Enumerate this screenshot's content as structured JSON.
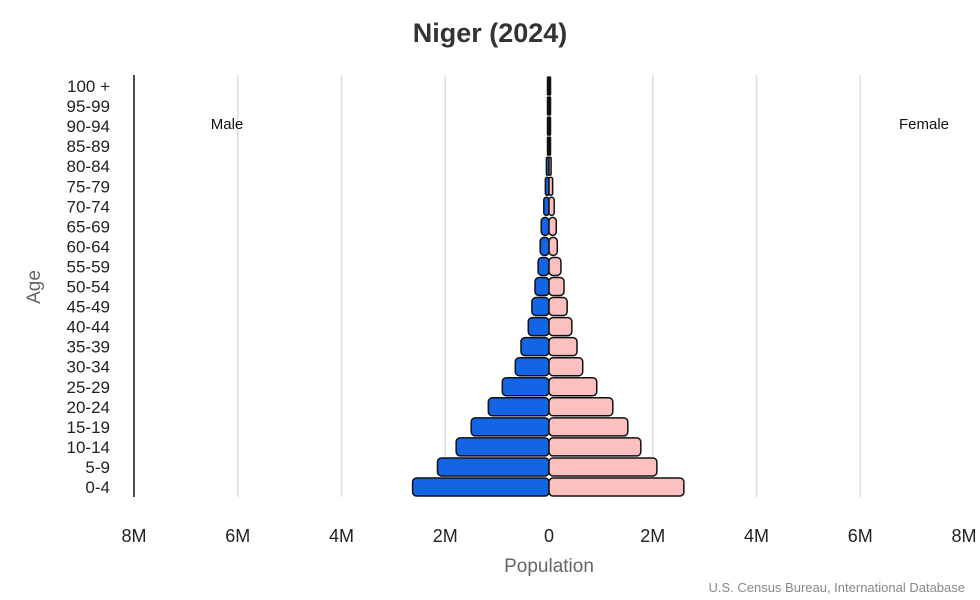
{
  "chart_data": {
    "type": "bar",
    "orientation": "horizontal-pyramid",
    "title": "Niger (2024)",
    "xlabel": "Population",
    "ylabel": "Age",
    "credit": "U.S. Census Bureau, International Database",
    "xlim": [
      -8000000,
      8000000
    ],
    "x_ticks": [
      -8000000,
      -6000000,
      -4000000,
      -2000000,
      0,
      2000000,
      4000000,
      6000000,
      8000000
    ],
    "x_tick_labels": [
      "8M",
      "6M",
      "4M",
      "2M",
      "0",
      "2M",
      "4M",
      "6M",
      "8M"
    ],
    "grid": true,
    "categories": [
      "0-4",
      "5-9",
      "10-14",
      "15-19",
      "20-24",
      "25-29",
      "30-34",
      "35-39",
      "40-44",
      "45-49",
      "50-54",
      "55-59",
      "60-64",
      "65-69",
      "70-74",
      "75-79",
      "80-84",
      "85-89",
      "90-94",
      "95-99",
      "100 +"
    ],
    "series": [
      {
        "name": "Male",
        "color": "#1464e6",
        "label_position": "top-left",
        "values": [
          2630000,
          2150000,
          1790000,
          1500000,
          1170000,
          900000,
          650000,
          540000,
          400000,
          330000,
          270000,
          210000,
          170000,
          150000,
          100000,
          70000,
          50000,
          20000,
          8000,
          3000,
          1000
        ]
      },
      {
        "name": "Female",
        "color": "#fcc0c0",
        "label_position": "top-right",
        "values": [
          2600000,
          2080000,
          1770000,
          1520000,
          1230000,
          920000,
          650000,
          540000,
          440000,
          350000,
          290000,
          230000,
          160000,
          140000,
          100000,
          70000,
          40000,
          20000,
          8000,
          3000,
          1000
        ]
      }
    ]
  }
}
